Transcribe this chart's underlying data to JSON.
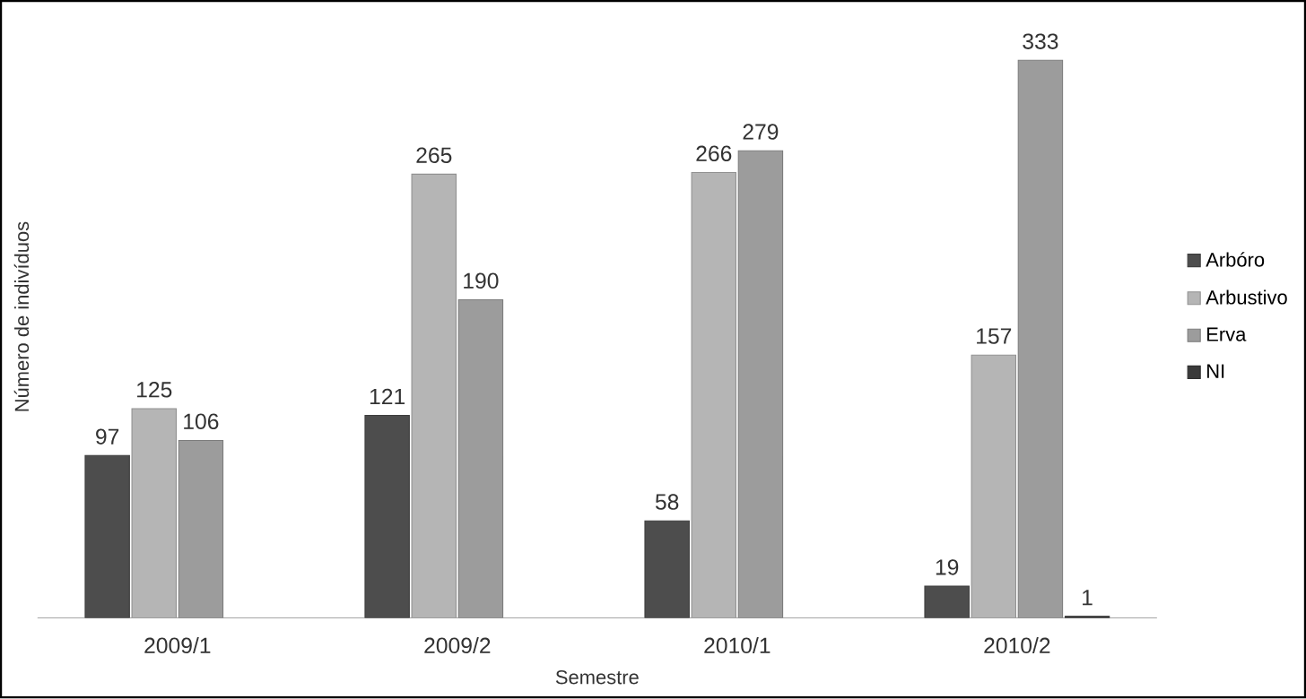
{
  "chart_data": {
    "type": "bar",
    "xlabel": "Semestre",
    "ylabel": "Número de indivíduos",
    "categories": [
      "2009/1",
      "2009/2",
      "2010/1",
      "2010/2"
    ],
    "series": [
      {
        "name": "Arbóro",
        "color": "#4d4d4d",
        "values": [
          97,
          121,
          58,
          19
        ]
      },
      {
        "name": "Arbustivo",
        "color": "#b5b5b5",
        "values": [
          125,
          265,
          266,
          157
        ]
      },
      {
        "name": "Erva",
        "color": "#9c9c9c",
        "values": [
          106,
          190,
          279,
          333
        ]
      },
      {
        "name": "NI",
        "color": "#3a3a3a",
        "values": [
          null,
          null,
          null,
          1
        ]
      }
    ],
    "data_labels": true,
    "legend": "right"
  }
}
